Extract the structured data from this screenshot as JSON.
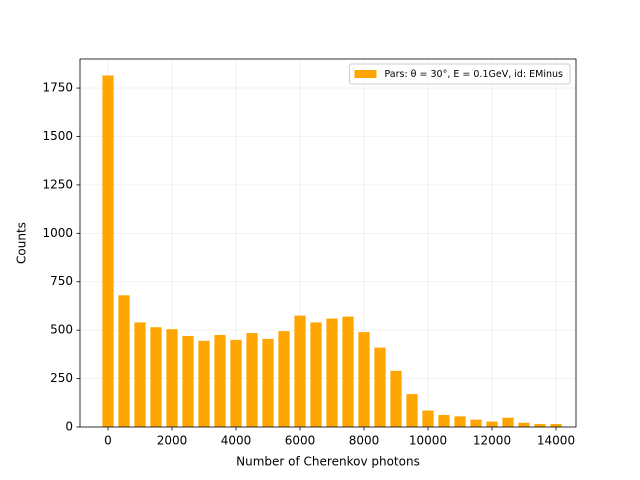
{
  "chart_data": {
    "type": "bar",
    "xlabel": "Number of Cherenkov photons",
    "ylabel": "Counts",
    "legend_label": "Pars: θ = 30°, E = 0.1GeV, id: EMinus",
    "legend_loc": "upper right",
    "color": "#ffa500",
    "grid": true,
    "x": [
      0,
      500,
      1000,
      1500,
      2000,
      2500,
      3000,
      3500,
      4000,
      4500,
      5000,
      5500,
      6000,
      6500,
      7000,
      7500,
      8000,
      8500,
      9000,
      9500,
      10000,
      10500,
      11000,
      11500,
      12000,
      12500,
      13000,
      13500,
      14000
    ],
    "values": [
      1815,
      680,
      540,
      515,
      505,
      470,
      445,
      475,
      450,
      485,
      455,
      495,
      575,
      540,
      560,
      570,
      490,
      410,
      290,
      170,
      85,
      62,
      55,
      38,
      28,
      48,
      22,
      15,
      15
    ],
    "xlim": [
      -875,
      14625
    ],
    "ylim": [
      0,
      1900
    ],
    "xticks": [
      0,
      2000,
      4000,
      6000,
      8000,
      10000,
      12000,
      14000
    ],
    "yticks": [
      0,
      250,
      500,
      750,
      1000,
      1250,
      1500,
      1750
    ]
  }
}
